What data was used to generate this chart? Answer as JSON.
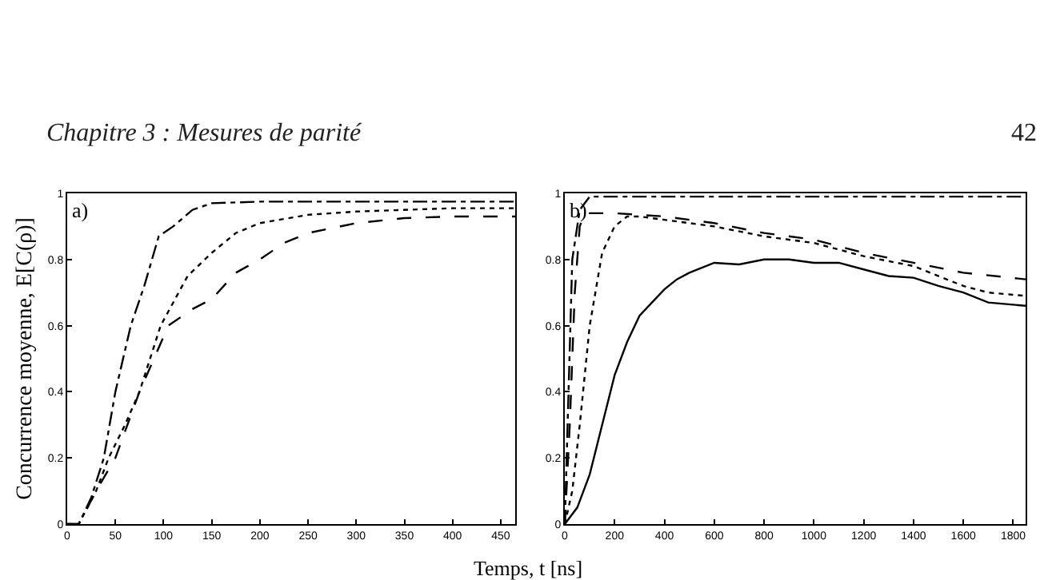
{
  "chart_data": [
    {
      "type": "line",
      "ylabel": "Concurrence moyenne, E[C(ρ)]",
      "annotations": [
        "a)",
        "Chapitre 3 : Mesures de parité"
      ],
      "xlim": [
        0,
        465
      ],
      "xticks": [
        0,
        50,
        100,
        150,
        200,
        250,
        300,
        350,
        400,
        450
      ],
      "ylim": [
        0,
        1
      ],
      "yticks": [
        0,
        0.2,
        0.4,
        0.6,
        0.8,
        1
      ],
      "series": [
        {
          "color": "#000000",
          "line_style": "dashdot",
          "x": [
            0,
            12,
            25,
            38,
            50,
            66,
            80,
            95,
            110,
            130,
            150,
            200,
            300,
            465
          ],
          "values": [
            0,
            0,
            0.08,
            0.2,
            0.4,
            0.6,
            0.72,
            0.87,
            0.9,
            0.95,
            0.97,
            0.975,
            0.975,
            0.975
          ]
        },
        {
          "color": "#000000",
          "line_style": "dotted",
          "x": [
            0,
            12,
            30,
            43,
            60,
            75,
            97,
            125,
            150,
            175,
            200,
            250,
            300,
            400,
            465
          ],
          "values": [
            0,
            0,
            0.1,
            0.2,
            0.3,
            0.4,
            0.6,
            0.75,
            0.82,
            0.88,
            0.91,
            0.935,
            0.945,
            0.955,
            0.955
          ]
        },
        {
          "color": "#000000",
          "line_style": "dashed",
          "x": [
            0,
            12,
            30,
            50,
            75,
            105,
            130,
            150,
            175,
            200,
            225,
            250,
            300,
            350,
            400,
            465
          ],
          "values": [
            0,
            0,
            0.1,
            0.2,
            0.4,
            0.6,
            0.65,
            0.68,
            0.76,
            0.8,
            0.85,
            0.88,
            0.91,
            0.925,
            0.93,
            0.93
          ]
        }
      ]
    },
    {
      "type": "line",
      "xlabel": "Temps, t [ns]",
      "annotations": [
        "b)",
        "42"
      ],
      "xlim": [
        0,
        1850
      ],
      "xticks": [
        0,
        200,
        400,
        600,
        800,
        1000,
        1200,
        1400,
        1600,
        1800
      ],
      "ylim": [
        0,
        1
      ],
      "yticks": [
        0,
        0.2,
        0.4,
        0.6,
        0.8,
        1
      ],
      "series": [
        {
          "color": "#000000",
          "line_style": "dashdot",
          "x": [
            0,
            15,
            30,
            60,
            100,
            300,
            1850
          ],
          "values": [
            0,
            0.4,
            0.8,
            0.95,
            0.99,
            0.99,
            0.99
          ]
        },
        {
          "color": "#000000",
          "line_style": "dashed",
          "x": [
            0,
            20,
            40,
            60,
            80,
            200,
            400,
            600,
            800,
            1000,
            1200,
            1400,
            1600,
            1850
          ],
          "values": [
            0,
            0.3,
            0.7,
            0.9,
            0.94,
            0.94,
            0.93,
            0.91,
            0.88,
            0.86,
            0.82,
            0.79,
            0.76,
            0.74
          ]
        },
        {
          "color": "#000000",
          "line_style": "dotted",
          "x": [
            0,
            30,
            60,
            100,
            150,
            200,
            250,
            300,
            400,
            600,
            800,
            1000,
            1200,
            1400,
            1600,
            1700,
            1850
          ],
          "values": [
            0,
            0.1,
            0.3,
            0.6,
            0.82,
            0.9,
            0.93,
            0.93,
            0.92,
            0.9,
            0.87,
            0.85,
            0.81,
            0.78,
            0.72,
            0.7,
            0.69
          ]
        },
        {
          "color": "#000000",
          "line_style": "solid",
          "x": [
            0,
            50,
            100,
            150,
            200,
            250,
            300,
            350,
            400,
            450,
            500,
            600,
            700,
            800,
            900,
            1000,
            1100,
            1200,
            1300,
            1400,
            1500,
            1600,
            1700,
            1850
          ],
          "values": [
            0,
            0.05,
            0.15,
            0.3,
            0.45,
            0.55,
            0.63,
            0.67,
            0.71,
            0.74,
            0.76,
            0.79,
            0.785,
            0.8,
            0.8,
            0.79,
            0.79,
            0.77,
            0.75,
            0.745,
            0.72,
            0.7,
            0.67,
            0.66
          ]
        }
      ]
    }
  ]
}
